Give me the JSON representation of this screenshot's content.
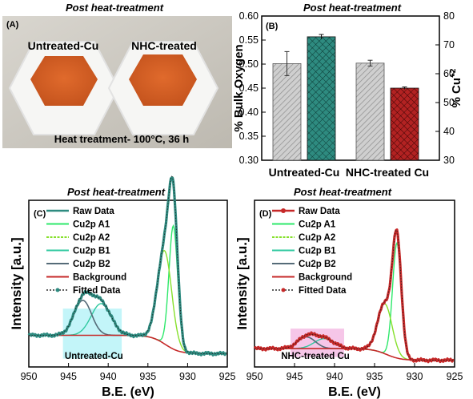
{
  "colors": {
    "raw": "#c62828",
    "a1": "#2ee86b",
    "a2": "#86e02c",
    "b1": "#30c9a0",
    "b2": "#556b78",
    "background": "#c62828",
    "fitted": "#1a1a1a",
    "teal": "#2e8b80",
    "red": "#b22222",
    "grey": "#c8c8c8",
    "cyan_box": "#b8f3f8",
    "pink_box": "#f4bce4"
  },
  "panel_a": {
    "title": "Post heat-treatment",
    "label": "(A)",
    "left_sample": "Untreated-Cu",
    "right_sample": "NHC-treated",
    "caption": "Heat treatment- 100°C, 36 h"
  },
  "panel_b": {
    "title": "Post heat-treatment",
    "label": "(B)"
  },
  "panel_c": {
    "title": "Post heat-treatment",
    "label": "(C)",
    "region_label": "Untreated-Cu"
  },
  "panel_d": {
    "title": "Post heat-treatment",
    "label": "(D)",
    "region_label": "NHC-treated Cu"
  },
  "chart_data": [
    {
      "type": "bar",
      "panel": "B",
      "categories": [
        "Untreated-Cu",
        "NHC-treated Cu"
      ],
      "ylabel": "% Bulk Oxygen",
      "ylim": [
        0.3,
        0.6
      ],
      "yticks": [
        "0.30",
        "0.35",
        "0.40",
        "0.45",
        "0.50",
        "0.55",
        "0.60"
      ],
      "y2label": "% Cu+2",
      "y2lim": [
        30,
        80
      ],
      "y2ticks": [
        "30",
        "40",
        "50",
        "60",
        "70",
        "80"
      ],
      "series": [
        {
          "axis": "left",
          "pattern": "diagonal hatch, grey",
          "values": [
            0.501,
            0.502
          ],
          "errors": [
            0.025,
            0.006
          ]
        },
        {
          "axis": "right",
          "pattern": "crosshatch, teal / red",
          "values": [
            72.8,
            55.0
          ],
          "errors": [
            0.8,
            0.4
          ]
        }
      ]
    },
    {
      "type": "line",
      "panel": "C",
      "xlabel": "B.E. (eV)",
      "ylabel": "Intensity [a.u.]",
      "xlim": [
        950,
        925
      ],
      "xticks": [
        "950",
        "945",
        "940",
        "935",
        "930",
        "925"
      ],
      "legend": [
        "Raw Data",
        "Cu2p A1",
        "Cu2p A2",
        "Cu2p B1",
        "Cu2p B2",
        "Background",
        "Fitted Data"
      ],
      "peaks": {
        "A1": {
          "center": 931.8,
          "height": 0.74
        },
        "A2": {
          "center": 932.9,
          "height": 0.56
        },
        "B1": {
          "center": 940.9,
          "height": 0.19
        },
        "B2": {
          "center": 943.2,
          "height": 0.21
        }
      },
      "background": {
        "low": 0.08,
        "high": 0.19,
        "step_center": 932.8
      }
    },
    {
      "type": "line",
      "panel": "D",
      "xlabel": "B.E. (eV)",
      "ylabel": "Intensity [a.u.]",
      "xlim": [
        950,
        925
      ],
      "xticks": [
        "950",
        "945",
        "940",
        "935",
        "930",
        "925"
      ],
      "legend": [
        "Raw Data",
        "Cu2p A1",
        "Cu2p A2",
        "Cu2p B1",
        "Cu2p B2",
        "Background",
        "Fitted Data"
      ],
      "peaks": {
        "A1": {
          "center": 932.2,
          "height": 0.69
        },
        "A2": {
          "center": 933.7,
          "height": 0.3
        },
        "B1": {
          "center": 941.3,
          "height": 0.06
        },
        "B2": {
          "center": 943.5,
          "height": 0.07
        }
      },
      "background": {
        "low": 0.04,
        "high": 0.11,
        "step_center": 933.5
      }
    }
  ]
}
